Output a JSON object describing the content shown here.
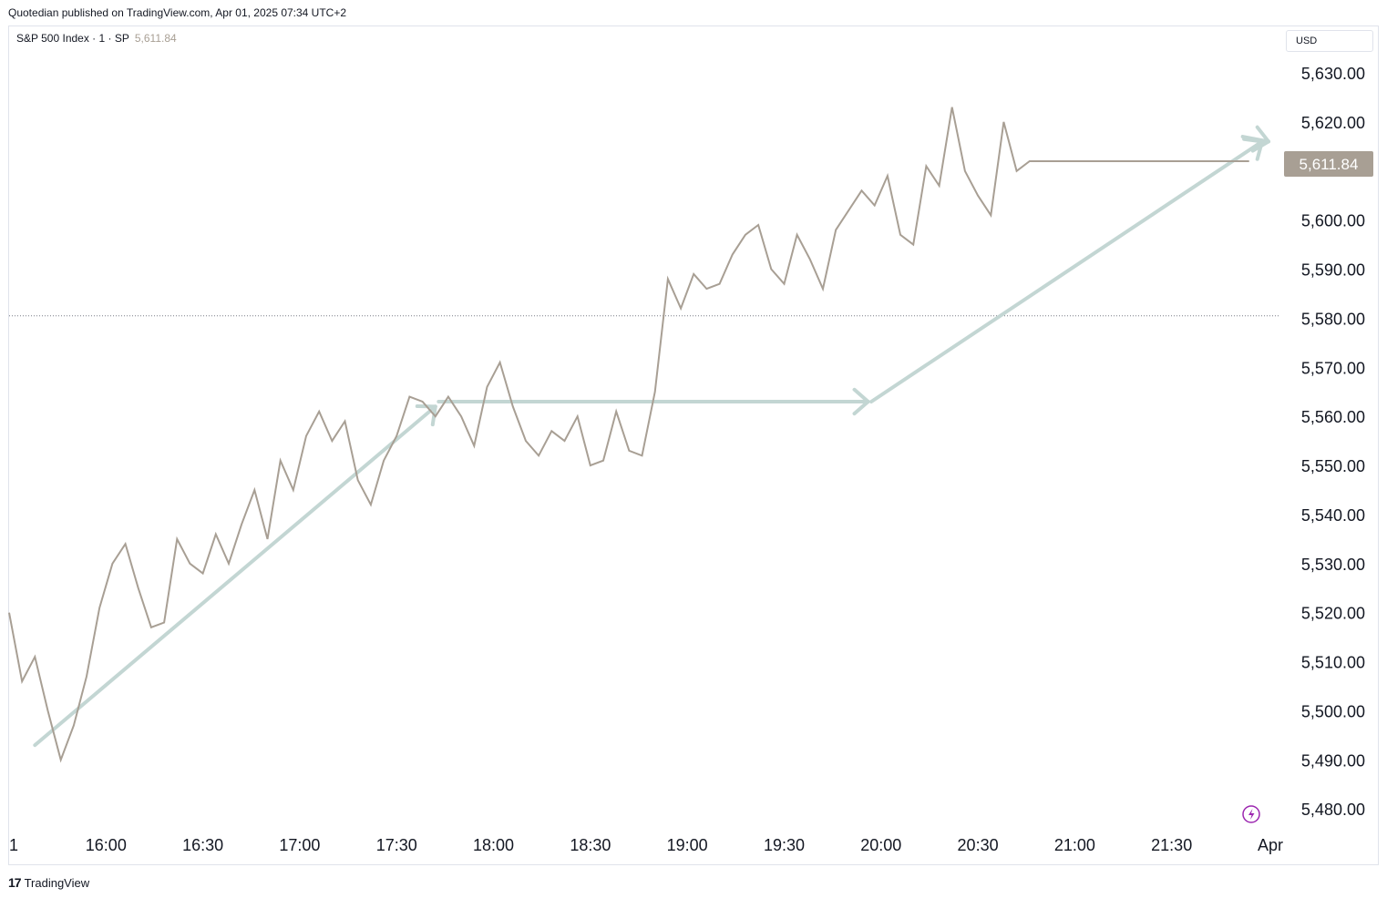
{
  "header": {
    "publish_line": "Quotedian published on TradingView.com, Apr 01, 2025 07:34 UTC+2"
  },
  "legend": {
    "symbol": "S&P 500 Index · 1 · SP",
    "last_price": "5,611.84"
  },
  "currency": "USD",
  "footer": {
    "brand_logo": "17",
    "brand": "TradingView"
  },
  "colors": {
    "price_line": "#a89f94",
    "trend_arrows": "#c3d6d3",
    "last_price_badge": "#a89f94",
    "reference_line": "#787b86",
    "alert_icon": "#9c27b0"
  },
  "icons": {
    "alert": "lightning-alert-icon"
  },
  "chart_data": {
    "type": "line",
    "title": "",
    "xlabel": "",
    "ylabel": "",
    "ylim": [
      5475,
      5635
    ],
    "xlim": [
      "15:30",
      "22:00"
    ],
    "x_ticks": [
      "1",
      "16:00",
      "16:30",
      "17:00",
      "17:30",
      "18:00",
      "18:30",
      "19:00",
      "19:30",
      "20:00",
      "20:30",
      "21:00",
      "21:30",
      "Apr"
    ],
    "y_ticks": [
      "5,630.00",
      "5,620.00",
      "5,600.00",
      "5,590.00",
      "5,580.00",
      "5,570.00",
      "5,560.00",
      "5,550.00",
      "5,540.00",
      "5,530.00",
      "5,520.00",
      "5,510.00",
      "5,500.00",
      "5,490.00",
      "5,480.00"
    ],
    "last_price_label": "5,611.84",
    "reference_level": 5580.5,
    "grid": false,
    "series": [
      {
        "x": [
          "15:30",
          "15:34",
          "15:38",
          "15:42",
          "15:46",
          "15:50",
          "15:54",
          "15:58",
          "16:02",
          "16:06",
          "16:10",
          "16:14",
          "16:18",
          "16:22",
          "16:26",
          "16:30",
          "16:34",
          "16:38",
          "16:42",
          "16:46",
          "16:50",
          "16:54",
          "16:58",
          "17:02",
          "17:06",
          "17:10",
          "17:14",
          "17:18",
          "17:22",
          "17:26",
          "17:30",
          "17:34",
          "17:38",
          "17:42",
          "17:46",
          "17:50",
          "17:54",
          "17:58",
          "18:02",
          "18:06",
          "18:10",
          "18:14",
          "18:18",
          "18:22",
          "18:26",
          "18:30",
          "18:34",
          "18:38",
          "18:42",
          "18:46",
          "18:50",
          "18:54",
          "18:58",
          "19:02",
          "19:06",
          "19:10",
          "19:14",
          "19:18",
          "19:22",
          "19:26",
          "19:30",
          "19:34",
          "19:38",
          "19:42",
          "19:46",
          "19:50",
          "19:54",
          "19:58",
          "20:02",
          "20:06",
          "20:10",
          "20:14",
          "20:18",
          "20:22",
          "20:26",
          "20:30",
          "20:34",
          "20:38",
          "20:42",
          "20:46",
          "20:50",
          "20:54",
          "20:58",
          "21:02",
          "21:06",
          "21:10",
          "21:14",
          "21:18",
          "21:22",
          "21:26",
          "21:30",
          "21:34",
          "21:38",
          "21:42",
          "21:46",
          "21:50",
          "21:54"
        ],
        "values": [
          5520,
          5506,
          5511,
          5500,
          5490,
          5497,
          5507,
          5521,
          5530,
          5534,
          5525,
          5517,
          5518,
          5535,
          5530,
          5528,
          5536,
          5530,
          5538,
          5545,
          5535,
          5551,
          5545,
          5556,
          5561,
          5555,
          5559,
          5547,
          5542,
          5551,
          5556,
          5564,
          5563,
          5560,
          5564,
          5560,
          5554,
          5566,
          5571,
          5562,
          5555,
          5552,
          5557,
          5555,
          5560,
          5550,
          5551,
          5561,
          5553,
          5552,
          5565,
          5588,
          5582,
          5589,
          5586,
          5587,
          5593,
          5597,
          5599,
          5590,
          5587,
          5597,
          5592,
          5586,
          5598,
          5602,
          5606,
          5603,
          5609,
          5597,
          5595,
          5611,
          5607,
          5623,
          5610,
          5605,
          5601,
          5620,
          5610,
          5612,
          5612,
          5612,
          5612,
          5612,
          5612,
          5612,
          5612,
          5612,
          5612,
          5612,
          5612,
          5612,
          5612,
          5612,
          5612,
          5612,
          5612
        ]
      }
    ],
    "annotations": [
      {
        "type": "arrow",
        "from": [
          "15:38",
          5493
        ],
        "to": [
          "17:42",
          5562
        ]
      },
      {
        "type": "arrow",
        "from": [
          "17:43",
          5563
        ],
        "to": [
          "19:56",
          5563
        ]
      },
      {
        "type": "arrow",
        "from": [
          "19:57",
          5563
        ],
        "to": [
          "21:58",
          5616
        ]
      },
      {
        "type": "arrow",
        "from": [
          "21:52",
          5617
        ],
        "to": [
          "22:00",
          5616
        ]
      }
    ]
  }
}
